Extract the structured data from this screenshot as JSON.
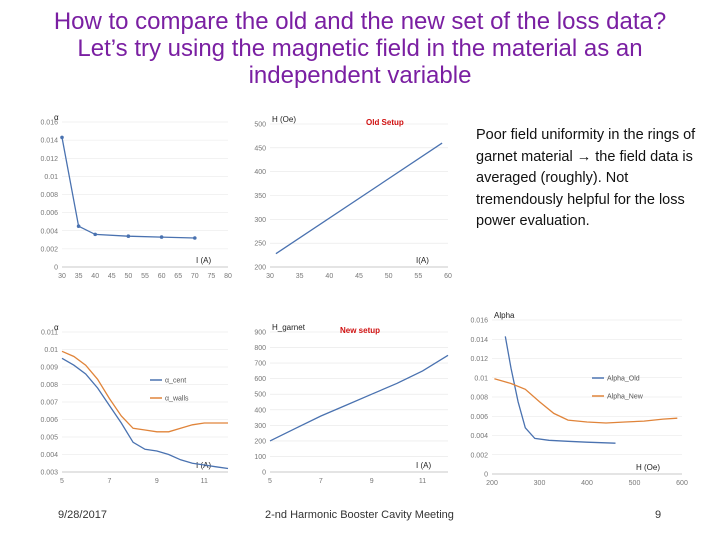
{
  "slide": {
    "title_line1": "How to compare the old and the new set of the loss data?",
    "title_line2": "Let’s try using the magnetic field in the material as an",
    "title_line3": "independent variable",
    "notes_prefix": "Poor field uniformity in the rings of garnet material",
    "notes_arrow": "→",
    "notes_suffix": "the field data is averaged (roughly). Not tremendously helpful for the loss power evaluation.",
    "footer_date": "9/28/2017",
    "footer_center": "2-nd Harmonic Booster Cavity Meeting",
    "footer_page": "9"
  },
  "colors": {
    "title": "#7a1fa2",
    "blue": "#4a72b0",
    "orange": "#e0843a",
    "red": "#d01010"
  },
  "chart_data": [
    {
      "id": "c1",
      "type": "line",
      "ylabel": "α",
      "xlabel": "I (A)",
      "xlim": [
        30,
        80
      ],
      "ylim": [
        0,
        0.016
      ],
      "xticks": [
        30,
        35,
        40,
        45,
        50,
        55,
        60,
        65,
        70,
        75,
        80
      ],
      "yticks": [
        0,
        0.002,
        0.004,
        0.006,
        0.008,
        0.01,
        0.012,
        0.014,
        0.016
      ],
      "series": [
        {
          "color": "#4a72b0",
          "marker": true,
          "x": [
            30,
            35,
            40,
            50,
            60,
            70
          ],
          "y": [
            0.0143,
            0.0045,
            0.0036,
            0.0034,
            0.0033,
            0.0032
          ]
        }
      ]
    },
    {
      "id": "c2",
      "type": "line",
      "title": "Old Setup",
      "ylabel": "H (Oe)",
      "xlabel": "I(A)",
      "xlim": [
        30,
        60
      ],
      "ylim": [
        200,
        500
      ],
      "xticks": [
        30,
        35,
        40,
        45,
        50,
        55,
        60
      ],
      "yticks": [
        200,
        250,
        300,
        350,
        400,
        450,
        500
      ],
      "series": [
        {
          "color": "#4a72b0",
          "marker": false,
          "x": [
            31,
            59
          ],
          "y": [
            228,
            460
          ]
        }
      ]
    },
    {
      "id": "c3",
      "type": "line",
      "ylabel": "α",
      "xlabel": "I (A)",
      "xlim": [
        5,
        12
      ],
      "ylim": [
        0.003,
        0.011
      ],
      "xticks": [
        5,
        7,
        9,
        11
      ],
      "yticks": [
        0.003,
        0.004,
        0.005,
        0.006,
        0.007,
        0.008,
        0.009,
        0.01,
        0.011
      ],
      "legend_position": "right",
      "series": [
        {
          "name": "α_cent",
          "color": "#4a72b0",
          "x": [
            5,
            5.5,
            6,
            6.5,
            7,
            7.5,
            8,
            8.5,
            9,
            9.5,
            10,
            10.5,
            11,
            11.5,
            12
          ],
          "y": [
            0.0095,
            0.0091,
            0.0086,
            0.0078,
            0.0068,
            0.0058,
            0.0047,
            0.0043,
            0.0042,
            0.004,
            0.0037,
            0.0035,
            0.0034,
            0.0033,
            0.0032
          ]
        },
        {
          "name": "α_walls",
          "color": "#e0843a",
          "x": [
            5,
            5.5,
            6,
            6.5,
            7,
            7.5,
            8,
            8.5,
            9,
            9.5,
            10,
            10.5,
            11,
            11.5,
            12
          ],
          "y": [
            0.0099,
            0.0096,
            0.0091,
            0.0083,
            0.0072,
            0.0062,
            0.0055,
            0.0054,
            0.0053,
            0.0053,
            0.0055,
            0.0057,
            0.0058,
            0.0058,
            0.0058
          ]
        }
      ]
    },
    {
      "id": "c4",
      "type": "line",
      "title": "New setup",
      "ylabel": "H_garnet",
      "xlabel": "I (A)",
      "xlim": [
        5,
        12
      ],
      "ylim": [
        0,
        900
      ],
      "xticks": [
        5,
        7,
        9,
        11
      ],
      "yticks": [
        0,
        100,
        200,
        300,
        400,
        500,
        600,
        700,
        800,
        900
      ],
      "series": [
        {
          "color": "#4a72b0",
          "x": [
            5,
            6,
            7,
            8,
            9,
            10,
            11,
            12
          ],
          "y": [
            200,
            280,
            360,
            430,
            500,
            570,
            650,
            750
          ]
        }
      ]
    },
    {
      "id": "c5",
      "type": "line",
      "ylabel": "Alpha",
      "xlabel": "H (Oe)",
      "xlim": [
        200,
        600
      ],
      "ylim": [
        0,
        0.016
      ],
      "xticks": [
        200,
        300,
        400,
        500,
        600
      ],
      "yticks": [
        0,
        0.002,
        0.004,
        0.006,
        0.008,
        0.01,
        0.012,
        0.014,
        0.016
      ],
      "legend_position": "right",
      "series": [
        {
          "name": "Alpha_Old",
          "color": "#4a72b0",
          "x": [
            228,
            240,
            255,
            270,
            290,
            320,
            360,
            400,
            460
          ],
          "y": [
            0.0143,
            0.011,
            0.0075,
            0.0048,
            0.0037,
            0.0035,
            0.0034,
            0.0033,
            0.0032
          ]
        },
        {
          "name": "Alpha_New",
          "color": "#e0843a",
          "x": [
            205,
            240,
            270,
            300,
            330,
            360,
            400,
            440,
            480,
            520,
            560,
            590
          ],
          "y": [
            0.0099,
            0.0094,
            0.0088,
            0.0075,
            0.0063,
            0.0056,
            0.0054,
            0.0053,
            0.0054,
            0.0055,
            0.0057,
            0.0058
          ]
        }
      ]
    }
  ]
}
